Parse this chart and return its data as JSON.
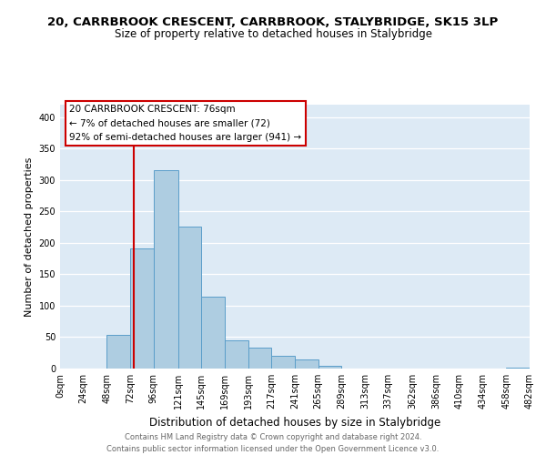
{
  "title": "20, CARRBROOK CRESCENT, CARRBROOK, STALYBRIDGE, SK15 3LP",
  "subtitle": "Size of property relative to detached houses in Stalybridge",
  "xlabel": "Distribution of detached houses by size in Stalybridge",
  "ylabel": "Number of detached properties",
  "bin_edges": [
    0,
    24,
    48,
    72,
    96,
    121,
    145,
    169,
    193,
    217,
    241,
    265,
    289,
    313,
    337,
    362,
    386,
    410,
    434,
    458,
    482
  ],
  "bin_labels": [
    "0sqm",
    "24sqm",
    "48sqm",
    "72sqm",
    "96sqm",
    "121sqm",
    "145sqm",
    "169sqm",
    "193sqm",
    "217sqm",
    "241sqm",
    "265sqm",
    "289sqm",
    "313sqm",
    "337sqm",
    "362sqm",
    "386sqm",
    "410sqm",
    "434sqm",
    "458sqm",
    "482sqm"
  ],
  "counts": [
    0,
    0,
    53,
    191,
    316,
    226,
    114,
    45,
    33,
    21,
    15,
    5,
    0,
    0,
    0,
    0,
    0,
    0,
    0,
    2
  ],
  "bar_color": "#aecde1",
  "bar_edge_color": "#5a9ec9",
  "vline_x": 76,
  "vline_color": "#cc0000",
  "ylim": [
    0,
    420
  ],
  "yticks": [
    0,
    50,
    100,
    150,
    200,
    250,
    300,
    350,
    400
  ],
  "annotation_title": "20 CARRBROOK CRESCENT: 76sqm",
  "annotation_line1": "← 7% of detached houses are smaller (72)",
  "annotation_line2": "92% of semi-detached houses are larger (941) →",
  "annotation_box_color": "#ffffff",
  "annotation_box_edge": "#cc0000",
  "footer_line1": "Contains HM Land Registry data © Crown copyright and database right 2024.",
  "footer_line2": "Contains public sector information licensed under the Open Government Licence v3.0.",
  "background_color": "#ddeaf5",
  "plot_background": "#ffffff",
  "grid_color": "#ffffff",
  "title_fontsize": 9.5,
  "subtitle_fontsize": 8.5,
  "ylabel_fontsize": 8,
  "xlabel_fontsize": 8.5,
  "tick_fontsize": 7,
  "annotation_fontsize": 7.5,
  "footer_fontsize": 6
}
